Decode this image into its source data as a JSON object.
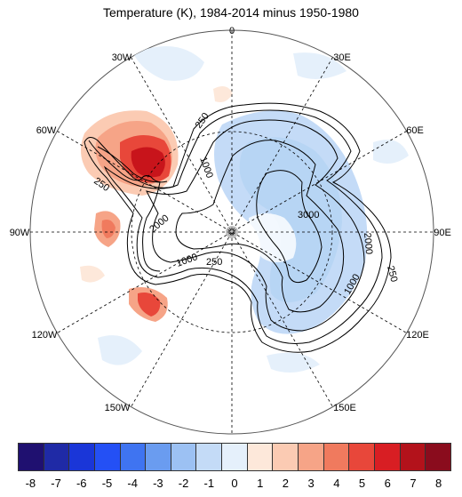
{
  "title": "Temperature (K), 1984-2014 minus 1950-1980",
  "longitude_labels": {
    "lon_0": "0",
    "lon_30e": "30E",
    "lon_60e": "60E",
    "lon_90e": "90E",
    "lon_120e": "120E",
    "lon_150e": "150E",
    "lon_30w": "30W",
    "lon_60w": "60W",
    "lon_90w": "90W",
    "lon_120w": "120W",
    "lon_150w": "150W"
  },
  "contour_labels": {
    "c250_a": "250",
    "c1000_a": "1000",
    "c250_b": "250",
    "c2000_a": "2000",
    "c1000_b": "1000",
    "c250_c": "250",
    "c3000": "3000",
    "c2000_b": "2000",
    "c250_d": "250",
    "c1000_c": "1000"
  },
  "colors": {
    "ocean_bg": "#ffffff",
    "land_outline": "#000000",
    "light_blue": "#d6e8fb",
    "mid_blue": "#b7d5f4",
    "light_red": "#fbdccd",
    "mid_red": "#f5a58a",
    "strong_red": "#ea4a35",
    "deep_red": "#c8141b"
  },
  "colorbar": {
    "colors": [
      "#1f1070",
      "#1f2aa6",
      "#1a36d8",
      "#2450f5",
      "#3f74f1",
      "#6a9cf0",
      "#9cc1f3",
      "#c4dbf7",
      "#e5f0fb",
      "#fde8da",
      "#fbcbb3",
      "#f6a487",
      "#f07a5e",
      "#e8473a",
      "#d81e23",
      "#b3121b",
      "#8a0c1d"
    ],
    "tick_labels": [
      "-8",
      "-7",
      "-6",
      "-5",
      "-4",
      "-3",
      "-2",
      "-1",
      "0",
      "1",
      "2",
      "3",
      "4",
      "5",
      "6",
      "7",
      "8"
    ]
  }
}
